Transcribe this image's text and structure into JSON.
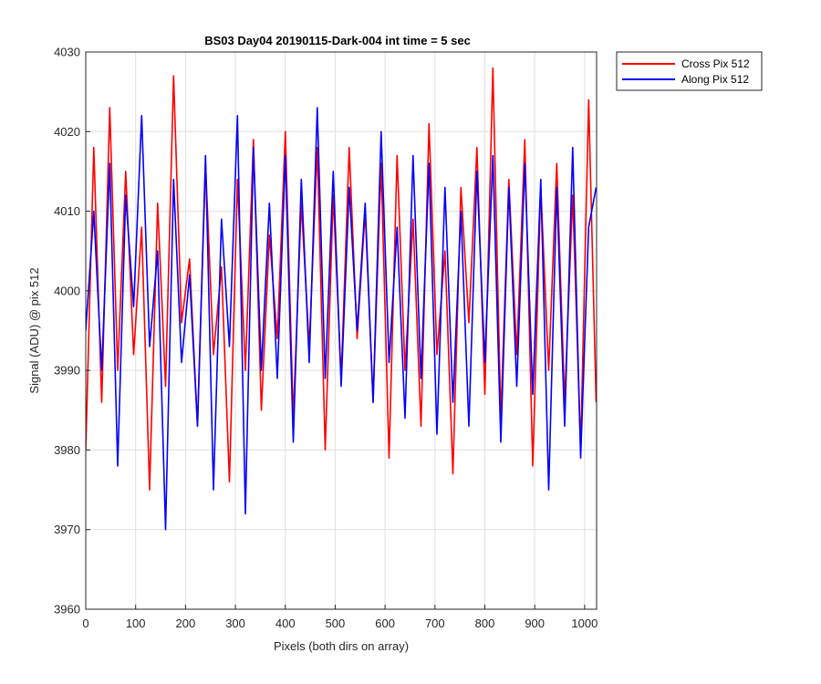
{
  "chart_data": {
    "type": "line",
    "title": "BS03 Day04 20190115-Dark-004 int time = 5 sec",
    "xlabel": "Pixels (both dirs on array)",
    "ylabel": "Signal (ADU) @ pix 512",
    "xlim": [
      0,
      1024
    ],
    "ylim": [
      3960,
      4030
    ],
    "xticks": [
      0,
      100,
      200,
      300,
      400,
      500,
      600,
      700,
      800,
      900,
      1000
    ],
    "yticks": [
      3960,
      3970,
      3980,
      3990,
      4000,
      4010,
      4020,
      4030
    ],
    "grid": true,
    "legend_position": "outside-top-right",
    "x": [
      0,
      16,
      32,
      48,
      64,
      80,
      96,
      112,
      128,
      144,
      160,
      176,
      192,
      208,
      224,
      240,
      256,
      272,
      288,
      304,
      320,
      336,
      352,
      368,
      384,
      400,
      416,
      432,
      448,
      464,
      480,
      496,
      512,
      528,
      544,
      560,
      576,
      592,
      608,
      624,
      640,
      656,
      672,
      688,
      704,
      720,
      736,
      752,
      768,
      784,
      800,
      816,
      832,
      848,
      864,
      880,
      896,
      912,
      928,
      944,
      960,
      976,
      992,
      1008,
      1023
    ],
    "series": [
      {
        "name": "Cross Pix 512",
        "color": "#ff0000",
        "values": [
          3980,
          4018,
          3986,
          4023,
          3990,
          4015,
          3992,
          4008,
          3975,
          4011,
          3988,
          4027,
          3996,
          4004,
          3983,
          4016,
          3992,
          4003,
          3976,
          4014,
          3990,
          4019,
          3985,
          4007,
          3994,
          4020,
          3984,
          4011,
          3993,
          4018,
          3980,
          4012,
          3989,
          4018,
          3994,
          4010,
          3986,
          4016,
          3979,
          4017,
          3990,
          4009,
          3983,
          4021,
          3992,
          4005,
          3977,
          4013,
          3996,
          4018,
          3987,
          4028,
          3984,
          4014,
          3992,
          4019,
          3978,
          4013,
          3990,
          4016,
          3986,
          4012,
          3980,
          4024,
          3986
        ]
      },
      {
        "name": "Along Pix 512",
        "color": "#0000ff",
        "values": [
          3995,
          4010,
          3990,
          4016,
          3978,
          4012,
          3998,
          4022,
          3993,
          4005,
          3970,
          4014,
          3991,
          4002,
          3983,
          4017,
          3975,
          4009,
          3993,
          4022,
          3972,
          4018,
          3990,
          4011,
          3989,
          4017,
          3981,
          4014,
          3991,
          4023,
          3989,
          4015,
          3988,
          4013,
          3995,
          4011,
          3986,
          4020,
          3991,
          4008,
          3984,
          4017,
          3989,
          4016,
          3982,
          4013,
          3986,
          4010,
          3983,
          4015,
          3991,
          4017,
          3981,
          4013,
          3988,
          4016,
          3987,
          4014,
          3975,
          4013,
          3983,
          4018,
          3979,
          4008,
          4013
        ]
      }
    ]
  }
}
